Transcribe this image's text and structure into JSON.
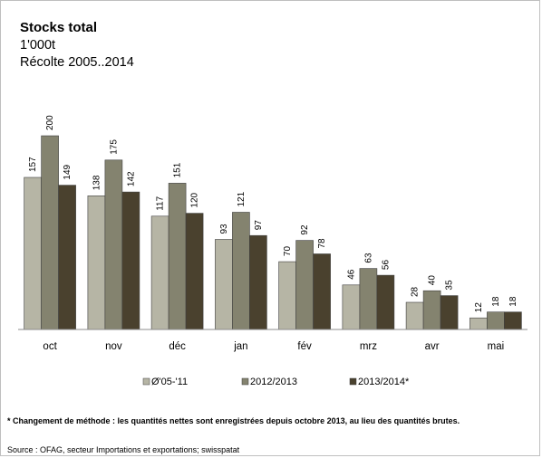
{
  "chart_data": {
    "type": "bar",
    "title": "Stocks total",
    "subtitle_lines": [
      "1'000t",
      "Récolte 2005..2014"
    ],
    "categories": [
      "oct",
      "nov",
      "déc",
      "jan",
      "fév",
      "mrz",
      "avr",
      "mai"
    ],
    "series": [
      {
        "name": "Ø'05-'11",
        "color": "#b6b5a5",
        "values": [
          157,
          138,
          117,
          93,
          70,
          46,
          28,
          12
        ]
      },
      {
        "name": "2012/2013",
        "color": "#84836f",
        "values": [
          200,
          175,
          151,
          121,
          92,
          63,
          40,
          18
        ]
      },
      {
        "name": "2013/2014*",
        "color": "#4a412e",
        "values": [
          149,
          142,
          120,
          97,
          78,
          56,
          35,
          18
        ]
      }
    ],
    "ylim": [
      0,
      200
    ],
    "grid": false,
    "legend_position": "bottom"
  },
  "footnote": "* Changement de méthode : les quantités nettes sont enregistrées depuis octobre 2013, au lieu des quantités brutes.",
  "source": "Source : OFAG, secteur Importations et exportations; swisspatat"
}
